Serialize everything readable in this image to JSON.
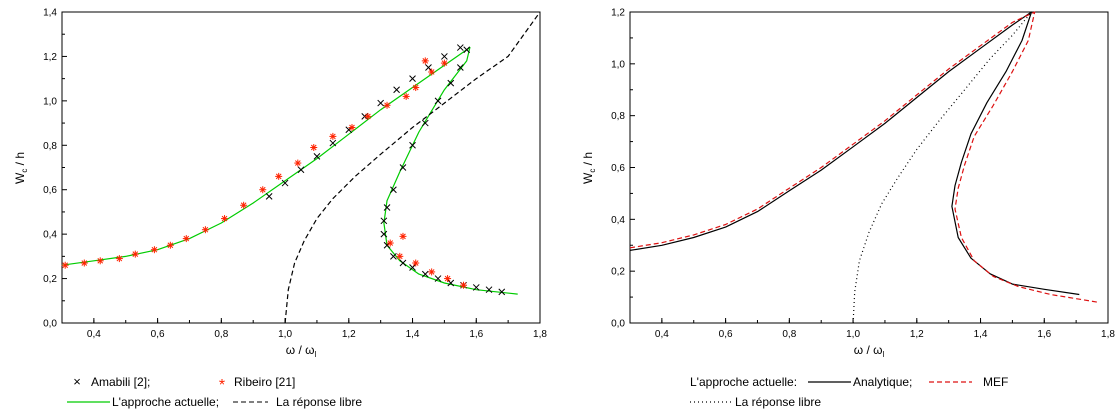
{
  "chart_data": [
    {
      "type": "line",
      "xlabel": "ω / ω",
      "xlabel_sub": "l",
      "ylabel": "W",
      "ylabel_sub": "c",
      "ylabel_suffix": " / h",
      "xlim": [
        0.3,
        1.8
      ],
      "ylim": [
        0.0,
        1.4
      ],
      "xticks": [
        "0,4",
        "0,6",
        "0,8",
        "1,0",
        "1,2",
        "1,4",
        "1,6",
        "1,8"
      ],
      "yticks": [
        "0,0",
        "0,2",
        "0,4",
        "0,6",
        "0,8",
        "1,0",
        "1,2",
        "1,4"
      ],
      "grid": false,
      "legend_position": "bottom",
      "series": [
        {
          "name": "L'approche actuelle;",
          "style": "solid",
          "color": "#00cc00",
          "x": [
            0.3,
            0.4,
            0.5,
            0.6,
            0.7,
            0.8,
            0.9,
            1.0,
            1.1,
            1.2,
            1.3,
            1.4,
            1.5,
            1.58,
            1.57,
            1.5,
            1.42,
            1.36,
            1.32,
            1.31,
            1.32,
            1.36,
            1.42,
            1.5,
            1.6,
            1.73
          ],
          "y": [
            0.26,
            0.28,
            0.3,
            0.33,
            0.38,
            0.45,
            0.54,
            0.64,
            0.74,
            0.85,
            0.96,
            1.06,
            1.16,
            1.24,
            1.18,
            1.05,
            0.86,
            0.68,
            0.55,
            0.45,
            0.35,
            0.28,
            0.22,
            0.18,
            0.15,
            0.13
          ]
        },
        {
          "name": "La réponse libre",
          "style": "dashed",
          "color": "#000000",
          "x": [
            1.0,
            1.01,
            1.03,
            1.06,
            1.1,
            1.15,
            1.22,
            1.3,
            1.4,
            1.5,
            1.6,
            1.7,
            1.8
          ],
          "y": [
            0.0,
            0.15,
            0.27,
            0.37,
            0.47,
            0.56,
            0.66,
            0.76,
            0.88,
            0.99,
            1.1,
            1.2,
            1.4
          ]
        },
        {
          "name": "Amabili [2];",
          "style": "marker-x",
          "color": "#000000",
          "x": [
            0.95,
            1.0,
            1.05,
            1.1,
            1.15,
            1.2,
            1.25,
            1.3,
            1.35,
            1.4,
            1.45,
            1.5,
            1.55,
            1.57,
            1.55,
            1.52,
            1.48,
            1.44,
            1.4,
            1.37,
            1.34,
            1.32,
            1.31,
            1.31,
            1.32,
            1.34,
            1.37,
            1.4,
            1.44,
            1.48,
            1.52,
            1.56,
            1.6,
            1.64,
            1.68
          ],
          "y": [
            0.57,
            0.63,
            0.69,
            0.75,
            0.81,
            0.87,
            0.93,
            0.99,
            1.05,
            1.1,
            1.15,
            1.2,
            1.24,
            1.23,
            1.15,
            1.08,
            1.0,
            0.9,
            0.8,
            0.7,
            0.6,
            0.52,
            0.46,
            0.4,
            0.35,
            0.3,
            0.27,
            0.25,
            0.22,
            0.2,
            0.18,
            0.17,
            0.16,
            0.15,
            0.14
          ]
        },
        {
          "name": "Ribeiro [21]",
          "style": "marker-asterisk",
          "color": "#ff2200",
          "x": [
            0.31,
            0.37,
            0.42,
            0.48,
            0.53,
            0.59,
            0.64,
            0.69,
            0.75,
            0.81,
            0.87,
            0.93,
            0.98,
            1.04,
            1.09,
            1.15,
            1.21,
            1.26,
            1.32,
            1.38,
            1.41,
            1.46,
            1.5,
            1.44,
            1.37,
            1.33,
            1.36,
            1.41,
            1.46,
            1.51,
            1.56
          ],
          "y": [
            0.26,
            0.27,
            0.28,
            0.29,
            0.31,
            0.33,
            0.35,
            0.38,
            0.42,
            0.47,
            0.53,
            0.6,
            0.66,
            0.72,
            0.79,
            0.84,
            0.88,
            0.93,
            0.98,
            1.02,
            1.06,
            1.13,
            1.17,
            1.18,
            0.39,
            0.36,
            0.3,
            0.27,
            0.23,
            0.2,
            0.17
          ]
        }
      ]
    },
    {
      "type": "line",
      "xlabel": "ω / ω",
      "xlabel_sub": "l",
      "ylabel": "W",
      "ylabel_sub": "c",
      "ylabel_suffix": " / h",
      "xlim": [
        0.3,
        1.8
      ],
      "ylim": [
        0.0,
        1.2
      ],
      "xticks": [
        "0,4",
        "0,6",
        "0,8",
        "1,0",
        "1,2",
        "1,4",
        "1,6",
        "1,8"
      ],
      "yticks": [
        "0,0",
        "0,2",
        "0,4",
        "0,6",
        "0,8",
        "1,0",
        "1,2"
      ],
      "grid": false,
      "legend_position": "bottom",
      "legend_prefix": "L'approche actuelle:",
      "series": [
        {
          "name": "Analytique;",
          "style": "solid",
          "color": "#000000",
          "x": [
            0.3,
            0.4,
            0.5,
            0.6,
            0.7,
            0.8,
            0.9,
            1.0,
            1.1,
            1.2,
            1.3,
            1.4,
            1.5,
            1.56,
            1.53,
            1.48,
            1.42,
            1.37,
            1.34,
            1.32,
            1.31,
            1.33,
            1.37,
            1.43,
            1.5,
            1.6,
            1.71
          ],
          "y": [
            0.28,
            0.3,
            0.33,
            0.37,
            0.43,
            0.51,
            0.59,
            0.68,
            0.77,
            0.87,
            0.97,
            1.06,
            1.15,
            1.2,
            1.09,
            0.97,
            0.85,
            0.73,
            0.62,
            0.53,
            0.45,
            0.33,
            0.25,
            0.19,
            0.15,
            0.13,
            0.11
          ]
        },
        {
          "name": "MEF",
          "style": "dashed",
          "color": "#dd1111",
          "x": [
            0.3,
            0.4,
            0.5,
            0.6,
            0.7,
            0.8,
            0.9,
            1.0,
            1.1,
            1.2,
            1.3,
            1.4,
            1.5,
            1.57,
            1.55,
            1.5,
            1.44,
            1.38,
            1.35,
            1.33,
            1.32,
            1.34,
            1.38,
            1.44,
            1.52,
            1.62,
            1.77
          ],
          "y": [
            0.29,
            0.31,
            0.34,
            0.38,
            0.44,
            0.52,
            0.6,
            0.69,
            0.78,
            0.88,
            0.98,
            1.07,
            1.16,
            1.2,
            1.09,
            0.97,
            0.84,
            0.72,
            0.61,
            0.52,
            0.44,
            0.33,
            0.24,
            0.18,
            0.14,
            0.11,
            0.08
          ]
        },
        {
          "name": "La réponse libre",
          "style": "dotted",
          "color": "#000000",
          "x": [
            1.0,
            1.005,
            1.02,
            1.05,
            1.09,
            1.14,
            1.2,
            1.27,
            1.35,
            1.43,
            1.5,
            1.56
          ],
          "y": [
            0.0,
            0.12,
            0.24,
            0.35,
            0.46,
            0.56,
            0.67,
            0.78,
            0.9,
            1.02,
            1.11,
            1.2
          ]
        }
      ]
    }
  ]
}
